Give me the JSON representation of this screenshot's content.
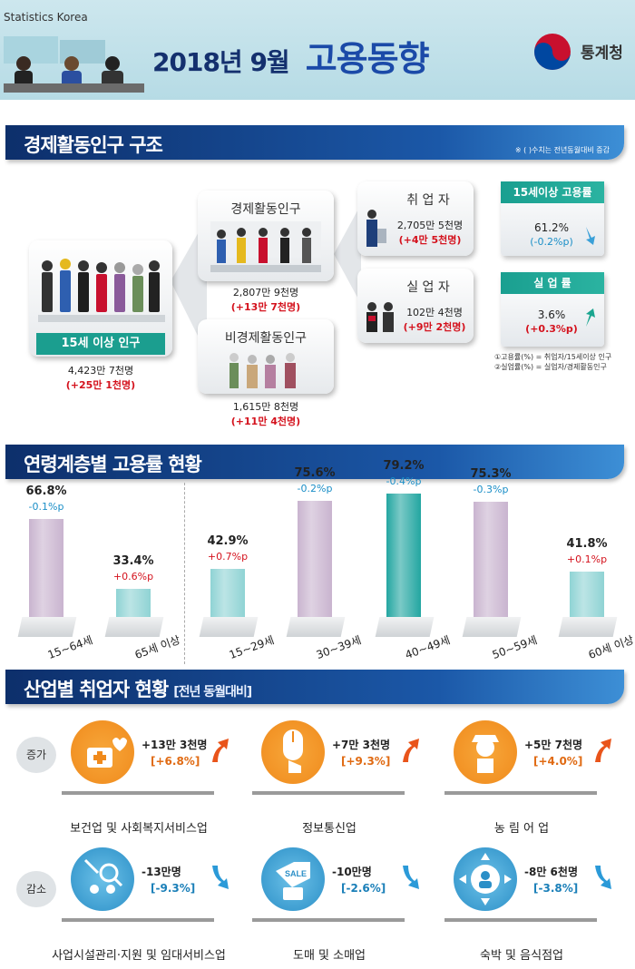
{
  "header": {
    "brand": "Statistics Korea",
    "title_prefix": "2018년 9월",
    "title_main": "고용동향",
    "logo_text": "통계청"
  },
  "structure": {
    "section_title": "경제활동인구 구조",
    "note": "※ ( )수치는 전년동월대비 증감",
    "pop15": {
      "banner": "15세 이상 인구",
      "value": "4,423만 7천명",
      "change": "(+25만 1천명)"
    },
    "active": {
      "title": "경제활동인구",
      "value": "2,807만 9천명",
      "change": "(+13만 7천명)"
    },
    "inactive": {
      "title": "비경제활동인구",
      "value": "1,615만 8천명",
      "change": "(+11만 4천명)"
    },
    "employed": {
      "title": "취 업 자",
      "value": "2,705만 5천명",
      "change": "(+4만 5천명)"
    },
    "unemployed": {
      "title": "실 업 자",
      "value": "102만 4천명",
      "change": "(+9만 2천명)"
    },
    "employment_rate": {
      "banner": "15세이상 고용률",
      "value": "61.2%",
      "change": "(-0.2%p)"
    },
    "unemployment_rate": {
      "banner": "실 업 률",
      "value": "3.6%",
      "change": "(+0.3%p)"
    },
    "footnote1": "①고용률(%) = 취업자/15세이상 인구",
    "footnote2": "②실업률(%) = 실업자/경제활동인구"
  },
  "age_section": {
    "section_title": "연령계층별 고용률 현황"
  },
  "chart_data": {
    "type": "bar",
    "title": "연령계층별 고용률 현황",
    "categories": [
      "15~64세",
      "65세 이상",
      "15~29세",
      "30~39세",
      "40~49세",
      "50~59세",
      "60세 이상"
    ],
    "values": [
      66.8,
      33.4,
      42.9,
      75.6,
      79.2,
      75.3,
      41.8
    ],
    "value_labels": [
      "66.8%",
      "33.4%",
      "42.9%",
      "75.6%",
      "79.2%",
      "75.3%",
      "41.8%"
    ],
    "changes": [
      "-0.1%p",
      "+0.6%p",
      "+0.7%p",
      "-0.2%p",
      "-0.4%p",
      "-0.3%p",
      "+0.1%p"
    ],
    "ylim": [
      0,
      100
    ],
    "colors": {
      "decrease": "#c9b4cf",
      "increase": "#8fd3d4",
      "emphasis": "#23a6a1",
      "dec_text": "#1a8ec7",
      "inc_text": "#d4121d"
    }
  },
  "industry": {
    "section_title": "산업별 취업자 현황",
    "section_sub": "[전년 동월대비]",
    "increase_tag": "증가",
    "decrease_tag": "감소",
    "increase": [
      {
        "name": "보건업 및 사회복지서비스업",
        "value": "+13만 3천명",
        "pct": "[+6.8%]",
        "icon": "medical-kit-heart-icon"
      },
      {
        "name": "정보통신업",
        "value": "+7만 3천명",
        "pct": "[+9.3%]",
        "icon": "mouse-hand-icon"
      },
      {
        "name": "농 림 어 업",
        "value": "+5만 7천명",
        "pct": "[+4.0%]",
        "icon": "farmer-icon"
      }
    ],
    "decrease": [
      {
        "name": "사업시설관리·지원 및 임대서비스업",
        "value": "-13만명",
        "pct": "[-9.3%]",
        "icon": "tools-people-icon"
      },
      {
        "name": "도매 및 소매업",
        "value": "-10만명",
        "pct": "[-2.6%]",
        "icon": "sale-tag-icon",
        "icon_text": "SALE"
      },
      {
        "name": "숙박 및 음식점업",
        "value": "-8만 6천명",
        "pct": "[-3.8%]",
        "icon": "person-arrows-icon"
      }
    ]
  }
}
